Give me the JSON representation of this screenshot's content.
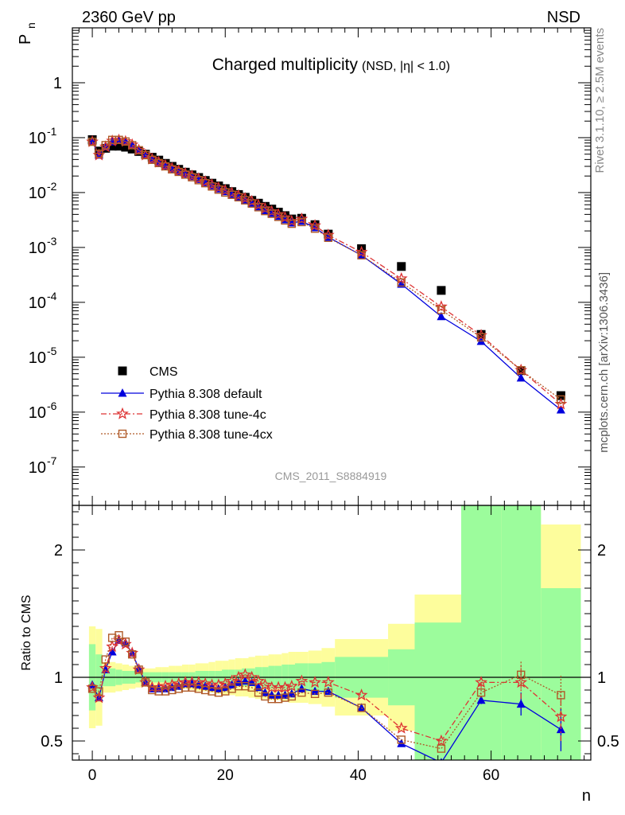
{
  "header": {
    "left": "2360 GeV pp",
    "right": "NSD"
  },
  "side_text": {
    "rivet": "Rivet 3.1.10, ≥ 2.5M events",
    "mcplots": "mcplots.cern.ch [arXiv:1306.3436]"
  },
  "analysis_label": "CMS_2011_S8884919",
  "colors": {
    "cms": "#000000",
    "default": "#0000dd",
    "tune4c": "#dd3333",
    "tune4cx": "#b05a28",
    "band_stat": "#9cfc9c",
    "band_syst": "#fdfd9c"
  },
  "chart_data": [
    {
      "type": "scatter",
      "title": "Charged multiplicity",
      "subtitle": "(NSD, |η| < 1.0)",
      "ylabel_main": "P",
      "ylabel_sub": "n",
      "log_y": true,
      "ylim": [
        2e-08,
        10
      ],
      "xlim": [
        -3,
        75
      ],
      "ytick_labels": [
        "1",
        "10",
        "10",
        "10",
        "10",
        "10",
        "10",
        "10"
      ],
      "ytick_exponents": [
        "",
        "-1",
        "-2",
        "-3",
        "-4",
        "-5",
        "-6",
        "-7"
      ],
      "legend": [
        "CMS",
        "Pythia 8.308 default",
        "Pythia 8.308 tune-4c",
        "Pythia 8.308 tune-4cx"
      ],
      "legend_position": "bottom-left",
      "series": [
        {
          "name": "CMS",
          "x": [
            0,
            1,
            2,
            3,
            4,
            5,
            6,
            7,
            8,
            9,
            10,
            11,
            12,
            13,
            14,
            15,
            16,
            17,
            18,
            19,
            20,
            21,
            22,
            23,
            24,
            25,
            26,
            27,
            28,
            29,
            30,
            31.5,
            33.5,
            35.5,
            40.5,
            46.5,
            52.5,
            58.5,
            64.5,
            70.5
          ],
          "y": [
            0.092,
            0.057,
            0.064,
            0.07,
            0.07,
            0.067,
            0.062,
            0.056,
            0.05,
            0.044,
            0.039,
            0.034,
            0.03,
            0.0265,
            0.0235,
            0.021,
            0.0188,
            0.0166,
            0.0148,
            0.0132,
            0.0118,
            0.0104,
            0.0092,
            0.0082,
            0.0072,
            0.0064,
            0.0056,
            0.005,
            0.0044,
            0.0038,
            0.0033,
            0.0034,
            0.0026,
            0.00175,
            0.00095,
            0.00045,
            0.000165,
            2.6e-05,
            5.7e-06,
            2e-06
          ]
        },
        {
          "name": "Pythia 8.308 default",
          "x": [
            0,
            1,
            2,
            3,
            4,
            5,
            6,
            7,
            8,
            9,
            10,
            11,
            12,
            13,
            14,
            15,
            16,
            17,
            18,
            19,
            20,
            21,
            22,
            23,
            24,
            25,
            26,
            27,
            28,
            29,
            30,
            31.5,
            33.5,
            35.5,
            40.5,
            46.5,
            52.5,
            58.5,
            64.5,
            70.5
          ],
          "y": [
            0.086,
            0.048,
            0.068,
            0.084,
            0.09,
            0.085,
            0.074,
            0.06,
            0.048,
            0.04,
            0.035,
            0.0305,
            0.027,
            0.0243,
            0.0218,
            0.0196,
            0.0174,
            0.0152,
            0.0133,
            0.0117,
            0.0104,
            0.0093,
            0.0083,
            0.0073,
            0.0064,
            0.0055,
            0.0047,
            0.0042,
            0.0037,
            0.0032,
            0.0028,
            0.003,
            0.0023,
            0.00154,
            0.00072,
            0.000215,
            5.5e-05,
            1.95e-05,
            4.2e-06,
            1.1e-06
          ]
        },
        {
          "name": "Pythia 8.308 tune-4c",
          "x": [
            0,
            1,
            2,
            3,
            4,
            5,
            6,
            7,
            8,
            9,
            10,
            11,
            12,
            13,
            14,
            15,
            16,
            17,
            18,
            19,
            20,
            21,
            22,
            23,
            24,
            25,
            26,
            27,
            28,
            29,
            30,
            31.5,
            33.5,
            35.5,
            40.5,
            46.5,
            52.5,
            58.5,
            64.5,
            70.5
          ],
          "y": [
            0.084,
            0.048,
            0.068,
            0.087,
            0.09,
            0.085,
            0.074,
            0.059,
            0.048,
            0.0405,
            0.0355,
            0.031,
            0.0275,
            0.0248,
            0.0222,
            0.02,
            0.0178,
            0.0157,
            0.0138,
            0.0122,
            0.0109,
            0.0098,
            0.0088,
            0.0078,
            0.0069,
            0.0059,
            0.0051,
            0.0045,
            0.004,
            0.0035,
            0.003,
            0.0033,
            0.0025,
            0.00168,
            0.00082,
            0.00027,
            8.3e-05,
            2.5e-05,
            5.8e-06,
            1.4e-06
          ]
        },
        {
          "name": "Pythia 8.308 tune-4cx",
          "x": [
            0,
            1,
            2,
            3,
            4,
            5,
            6,
            7,
            8,
            9,
            10,
            11,
            12,
            13,
            14,
            15,
            16,
            17,
            18,
            19,
            20,
            21,
            22,
            23,
            24,
            25,
            26,
            27,
            28,
            29,
            30,
            31.5,
            33.5,
            35.5,
            40.5,
            46.5,
            52.5,
            58.5,
            64.5,
            70.5
          ],
          "y": [
            0.084,
            0.051,
            0.073,
            0.091,
            0.091,
            0.085,
            0.073,
            0.059,
            0.048,
            0.0395,
            0.0345,
            0.03,
            0.0265,
            0.0238,
            0.0212,
            0.019,
            0.0168,
            0.0148,
            0.0129,
            0.0113,
            0.01,
            0.0091,
            0.0082,
            0.0072,
            0.0063,
            0.0054,
            0.0046,
            0.0041,
            0.0036,
            0.0031,
            0.0027,
            0.0029,
            0.0022,
            0.0015,
            0.00072,
            0.00023,
            7.3e-05,
            2.3e-05,
            5.8e-06,
            1.7e-06
          ]
        }
      ]
    },
    {
      "type": "line",
      "ylabel": "Ratio to CMS",
      "xlabel": "n",
      "ylim": [
        0.35,
        2.35
      ],
      "xlim": [
        -3,
        75
      ],
      "xtick_labels": [
        "0",
        "20",
        "40",
        "60"
      ],
      "ytick_labels": [
        "0.5",
        "1",
        "2"
      ],
      "reference_line": 1,
      "bands": {
        "x_edges": [
          -0.5,
          0.5,
          1.5,
          2.5,
          3.5,
          4.5,
          5.5,
          6.5,
          7.5,
          8.5,
          9.5,
          10.5,
          11.5,
          12.5,
          13.5,
          14.5,
          15.5,
          16.5,
          17.5,
          18.5,
          19.5,
          20.5,
          21.5,
          22.5,
          23.5,
          24.5,
          25.5,
          26.5,
          27.5,
          28.5,
          29.5,
          30.5,
          32.5,
          34.5,
          36.5,
          44.5,
          48.5,
          55.5,
          61.5,
          67.5,
          73.5
        ],
        "stat_low": [
          0.74,
          0.82,
          0.93,
          0.93,
          0.94,
          0.95,
          0.95,
          0.96,
          0.96,
          0.96,
          0.96,
          0.96,
          0.96,
          0.96,
          0.96,
          0.96,
          0.95,
          0.95,
          0.95,
          0.95,
          0.94,
          0.94,
          0.94,
          0.93,
          0.93,
          0.92,
          0.92,
          0.91,
          0.91,
          0.9,
          0.9,
          0.89,
          0.89,
          0.88,
          0.84,
          0.78,
          0.0,
          0.0,
          0.0,
          0.0
        ],
        "stat_high": [
          1.26,
          1.18,
          1.07,
          1.07,
          1.06,
          1.05,
          1.05,
          1.04,
          1.04,
          1.04,
          1.04,
          1.04,
          1.04,
          1.04,
          1.04,
          1.04,
          1.05,
          1.05,
          1.05,
          1.05,
          1.06,
          1.06,
          1.06,
          1.07,
          1.07,
          1.08,
          1.08,
          1.09,
          1.09,
          1.1,
          1.1,
          1.11,
          1.11,
          1.12,
          1.16,
          1.22,
          1.43,
          2.6,
          2.6,
          1.7
        ],
        "syst_low": [
          0.6,
          0.62,
          0.88,
          0.88,
          0.89,
          0.9,
          0.91,
          0.92,
          0.93,
          0.93,
          0.93,
          0.92,
          0.92,
          0.91,
          0.91,
          0.9,
          0.89,
          0.89,
          0.88,
          0.87,
          0.86,
          0.86,
          0.85,
          0.85,
          0.84,
          0.83,
          0.83,
          0.82,
          0.82,
          0.81,
          0.8,
          0.8,
          0.79,
          0.77,
          0.7,
          0.58,
          0.0,
          0.0,
          0.0,
          0.0
        ],
        "syst_high": [
          1.4,
          1.38,
          1.12,
          1.12,
          1.11,
          1.1,
          1.09,
          1.08,
          1.07,
          1.07,
          1.08,
          1.08,
          1.09,
          1.09,
          1.1,
          1.1,
          1.11,
          1.11,
          1.12,
          1.13,
          1.13,
          1.14,
          1.15,
          1.15,
          1.16,
          1.17,
          1.17,
          1.18,
          1.18,
          1.19,
          1.2,
          1.2,
          1.21,
          1.23,
          1.3,
          1.42,
          1.65,
          2.6,
          2.6,
          2.2
        ]
      },
      "series": [
        {
          "name": "Pythia 8.308 default",
          "x": [
            0,
            1,
            2,
            3,
            4,
            5,
            6,
            7,
            8,
            9,
            10,
            11,
            12,
            13,
            14,
            15,
            16,
            17,
            18,
            19,
            20,
            21,
            22,
            23,
            24,
            25,
            26,
            27,
            28,
            29,
            30,
            31.5,
            33.5,
            35.5,
            40.5,
            46.5,
            52.5,
            58.5,
            64.5,
            70.5
          ],
          "y": [
            0.94,
            0.84,
            1.06,
            1.2,
            1.29,
            1.27,
            1.19,
            1.07,
            0.96,
            0.91,
            0.91,
            0.91,
            0.92,
            0.93,
            0.95,
            0.95,
            0.94,
            0.93,
            0.92,
            0.91,
            0.92,
            0.94,
            0.96,
            0.97,
            0.96,
            0.92,
            0.88,
            0.86,
            0.86,
            0.86,
            0.87,
            0.91,
            0.89,
            0.89,
            0.76,
            0.48,
            0.33,
            0.82,
            0.79,
            0.59
          ],
          "yerr": [
            0,
            0,
            0,
            0,
            0,
            0,
            0,
            0,
            0,
            0,
            0,
            0,
            0,
            0,
            0,
            0,
            0,
            0,
            0,
            0,
            0,
            0,
            0,
            0,
            0,
            0,
            0,
            0,
            0,
            0,
            0,
            0,
            0,
            0,
            0,
            0,
            0,
            0.03,
            0.09,
            0.17
          ]
        },
        {
          "name": "Pythia 8.308 tune-4c",
          "x": [
            0,
            1,
            2,
            3,
            4,
            5,
            6,
            7,
            8,
            9,
            10,
            11,
            12,
            13,
            14,
            15,
            16,
            17,
            18,
            19,
            20,
            21,
            22,
            23,
            24,
            25,
            26,
            27,
            28,
            29,
            30,
            31.5,
            33.5,
            35.5,
            40.5,
            46.5,
            52.5,
            58.5,
            64.5,
            70.5
          ],
          "y": [
            0.92,
            0.84,
            1.07,
            1.24,
            1.29,
            1.26,
            1.19,
            1.06,
            0.96,
            0.92,
            0.92,
            0.93,
            0.94,
            0.95,
            0.96,
            0.96,
            0.96,
            0.95,
            0.94,
            0.94,
            0.95,
            0.97,
            1.0,
            1.02,
            1.0,
            0.97,
            0.94,
            0.92,
            0.92,
            0.92,
            0.93,
            0.97,
            0.96,
            0.96,
            0.86,
            0.6,
            0.5,
            0.96,
            0.96,
            0.69
          ],
          "yerr": [
            0,
            0,
            0,
            0,
            0,
            0,
            0,
            0,
            0,
            0,
            0,
            0,
            0,
            0,
            0,
            0,
            0,
            0,
            0,
            0,
            0,
            0,
            0,
            0,
            0,
            0,
            0,
            0,
            0,
            0,
            0,
            0,
            0,
            0,
            0,
            0,
            0,
            0.04,
            0.13,
            0.19
          ]
        },
        {
          "name": "Pythia 8.308 tune-4cx",
          "x": [
            0,
            1,
            2,
            3,
            4,
            5,
            6,
            7,
            8,
            9,
            10,
            11,
            12,
            13,
            14,
            15,
            16,
            17,
            18,
            19,
            20,
            21,
            22,
            23,
            24,
            25,
            26,
            27,
            28,
            29,
            30,
            31.5,
            33.5,
            35.5,
            40.5,
            46.5,
            52.5,
            58.5,
            64.5,
            70.5
          ],
          "y": [
            0.91,
            0.89,
            1.14,
            1.31,
            1.33,
            1.28,
            1.18,
            1.06,
            0.96,
            0.9,
            0.89,
            0.89,
            0.9,
            0.91,
            0.92,
            0.92,
            0.91,
            0.9,
            0.89,
            0.88,
            0.89,
            0.91,
            0.93,
            0.93,
            0.92,
            0.88,
            0.85,
            0.83,
            0.83,
            0.84,
            0.85,
            0.88,
            0.87,
            0.88,
            0.76,
            0.51,
            0.44,
            0.88,
            1.02,
            0.86
          ],
          "yerr": [
            0,
            0,
            0,
            0,
            0,
            0,
            0,
            0,
            0,
            0,
            0,
            0,
            0,
            0,
            0,
            0,
            0,
            0,
            0,
            0,
            0,
            0,
            0,
            0,
            0,
            0,
            0,
            0,
            0,
            0,
            0,
            0,
            0,
            0,
            0,
            0,
            0,
            0.04,
            0.11,
            0.16
          ]
        }
      ]
    }
  ]
}
